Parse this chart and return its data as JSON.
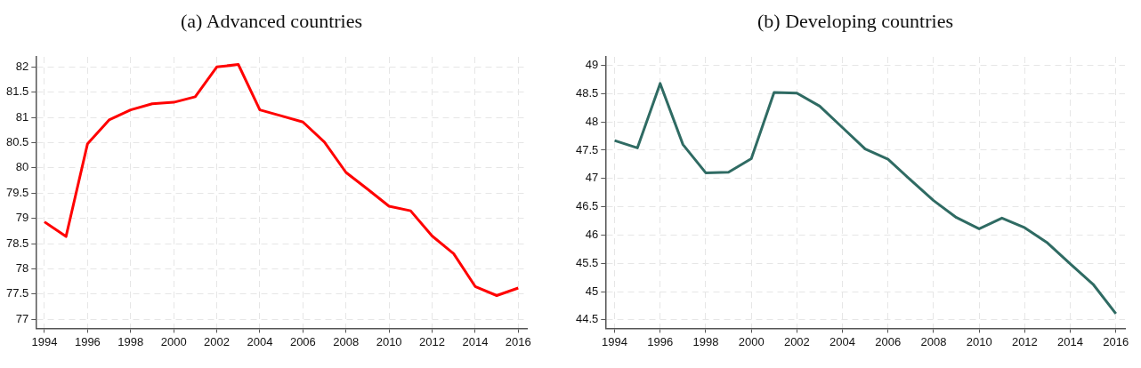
{
  "chart_data": [
    {
      "type": "line",
      "title": "(a)  Advanced countries",
      "x": [
        1994,
        1995,
        1996,
        1997,
        1998,
        1999,
        2000,
        2001,
        2002,
        2003,
        2004,
        2005,
        2006,
        2007,
        2008,
        2009,
        2010,
        2011,
        2012,
        2013,
        2014,
        2015,
        2016
      ],
      "series": [
        {
          "color": "#ff0000",
          "values": [
            78.93,
            78.64,
            80.48,
            80.95,
            81.15,
            81.27,
            81.3,
            81.41,
            82.0,
            82.05,
            81.15,
            81.03,
            80.91,
            80.51,
            79.91,
            79.58,
            79.24,
            79.15,
            78.65,
            78.3,
            77.65,
            77.47,
            77.62
          ]
        }
      ],
      "xlim": [
        1993.6,
        2016.4
      ],
      "xticks": [
        1994,
        1996,
        1998,
        2000,
        2002,
        2004,
        2006,
        2008,
        2010,
        2012,
        2014,
        2016
      ],
      "ylim": [
        76.82,
        82.2
      ],
      "yticks": [
        77,
        77.5,
        78,
        78.5,
        79,
        79.5,
        80,
        80.5,
        81,
        81.5,
        82
      ],
      "grid": true,
      "legend": false,
      "marker": "none",
      "line_style": "solid"
    },
    {
      "type": "line",
      "title": "(b)  Developing countries",
      "x": [
        1994,
        1995,
        1996,
        1997,
        1998,
        1999,
        2000,
        2001,
        2002,
        2003,
        2004,
        2005,
        2006,
        2007,
        2008,
        2009,
        2010,
        2011,
        2012,
        2013,
        2014,
        2015,
        2016
      ],
      "series": [
        {
          "color": "#2f6b63",
          "values": [
            47.67,
            47.54,
            48.68,
            47.6,
            47.1,
            47.11,
            47.35,
            48.52,
            48.51,
            48.28,
            47.9,
            47.52,
            47.34,
            46.97,
            46.61,
            46.31,
            46.11,
            46.3,
            46.13,
            45.86,
            45.49,
            45.13,
            44.61
          ]
        }
      ],
      "xlim": [
        1993.6,
        2016.4
      ],
      "xticks": [
        1994,
        1996,
        1998,
        2000,
        2002,
        2004,
        2006,
        2008,
        2010,
        2012,
        2014,
        2016
      ],
      "ylim": [
        44.35,
        49.15
      ],
      "yticks": [
        44.5,
        45,
        45.5,
        46,
        46.5,
        47,
        47.5,
        48,
        48.5,
        49
      ],
      "grid": true,
      "legend": false,
      "marker": "none",
      "line_style": "solid"
    }
  ]
}
